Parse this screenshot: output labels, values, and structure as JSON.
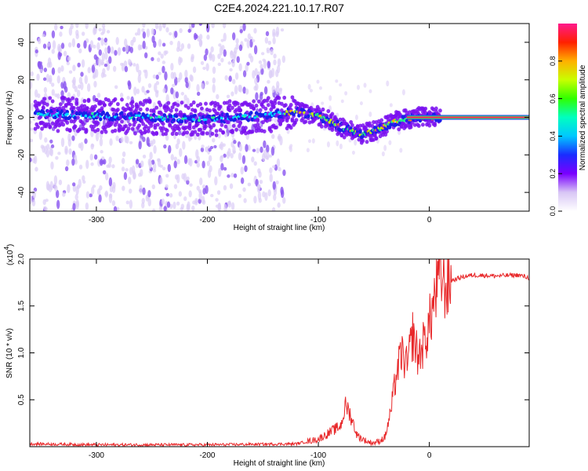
{
  "title": "C2E4.2024.221.10.17.R07",
  "colors": {
    "snr_line": "#e8282a",
    "axis": "#000000",
    "frame": "#000000"
  },
  "chart_data": [
    {
      "type": "heatmap",
      "xlabel": "Height of straight line (km)",
      "ylabel": "Frequency (Hz)",
      "xlim": [
        -360,
        90
      ],
      "ylim": [
        -50,
        50
      ],
      "xticks": [
        -300,
        -200,
        -100,
        0
      ],
      "yticks": [
        -40,
        -20,
        0,
        20,
        40
      ],
      "colorbar": {
        "label": "Normalized spectral amplitude",
        "range": [
          0,
          1
        ],
        "ticks": [
          "0.0",
          "0.2",
          "0.4",
          "0.6",
          "0.8"
        ],
        "tick_values": [
          0.0,
          0.2,
          0.4,
          0.6,
          0.8
        ]
      },
      "ridge": {
        "x": [
          -355,
          -300,
          -250,
          -200,
          -150,
          -120,
          -100,
          -80,
          -60,
          -45,
          -30,
          -20,
          -10,
          0,
          10,
          90
        ],
        "frequency": [
          2,
          1,
          0,
          -1,
          1,
          3,
          1,
          -5,
          -9,
          -6,
          -2,
          -1,
          0,
          0,
          0,
          0
        ]
      },
      "noise_band_x": [
        -360,
        -130
      ]
    },
    {
      "type": "line",
      "xlabel": "Height of straight line (km)",
      "ylabel": "SNR (10 * v/v)",
      "y_multiplier": "(x10",
      "y_multiplier_exp": "4",
      "y_multiplier_close": ")",
      "xlim": [
        -360,
        90
      ],
      "ylim": [
        0,
        2.0
      ],
      "xticks": [
        -300,
        -200,
        -100,
        0
      ],
      "yticks": [
        0.5,
        1.0,
        1.5,
        2.0
      ],
      "ytick_labels": [
        "0.5",
        "1.0",
        "1.5",
        "2.0"
      ],
      "series": [
        {
          "name": "SNR",
          "x": [
            -360,
            -300,
            -200,
            -120,
            -100,
            -90,
            -80,
            -75,
            -70,
            -65,
            -60,
            -55,
            -50,
            -45,
            -40,
            -35,
            -30,
            -25,
            -20,
            -15,
            -10,
            -5,
            0,
            5,
            10,
            15,
            20,
            30,
            40,
            60,
            80,
            90
          ],
          "y": [
            0.03,
            0.02,
            0.02,
            0.03,
            0.08,
            0.15,
            0.22,
            0.45,
            0.3,
            0.12,
            0.08,
            0.05,
            0.04,
            0.06,
            0.1,
            0.35,
            0.75,
            1.0,
            0.85,
            1.2,
            0.95,
            1.1,
            1.3,
            1.6,
            1.85,
            1.7,
            1.77,
            1.81,
            1.83,
            1.82,
            1.83,
            1.8
          ]
        }
      ]
    }
  ]
}
